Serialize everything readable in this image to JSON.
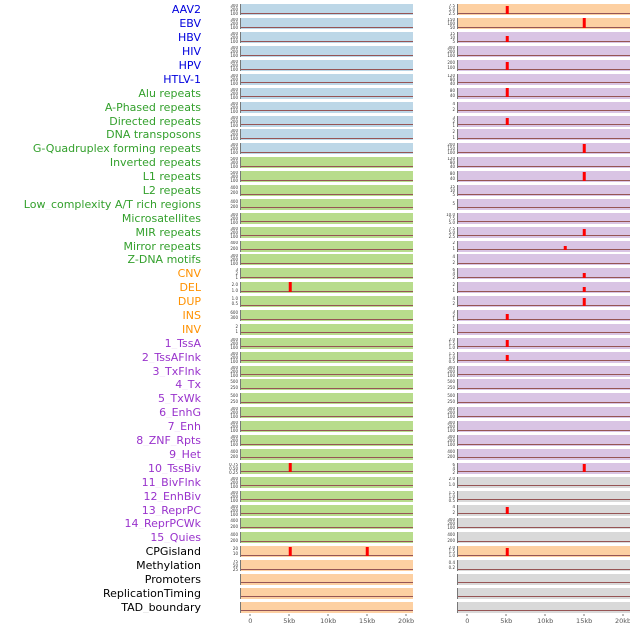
{
  "palette": {
    "label_colors": {
      "virus": "#0000dd",
      "repeat": "#33a02c",
      "sv": "#ff9100",
      "chromatin": "#9932cc",
      "other": "#000000"
    },
    "panel_colors": {
      "blue": "#bdd7e7",
      "green": "#b8dc8c",
      "tan": "#fdd0a2",
      "purple": "#d9c4e4",
      "gray": "#d9d9d9"
    },
    "spike_color": "#ff0000",
    "baseline_color": "#965555",
    "axis_text_color": "#555555"
  },
  "chart_data": {
    "type": "line",
    "subtype": "small-multiple-genomic-tracks",
    "title": "",
    "xlabel": "",
    "ylabel": "",
    "n_columns": 2,
    "x_range_kb": [
      0,
      20
    ],
    "x_ticks": [
      "0",
      "5kb",
      "10kb",
      "15kb",
      "20kb"
    ],
    "x_tick_kb": [
      0,
      5,
      10,
      15,
      20
    ],
    "description": "Two columns of flat density traces with red peak spikes; spike positions given in kb, heights as fraction of panel",
    "rows": [
      {
        "label": "AAV2",
        "group": "virus",
        "c1": {
          "bg": "blue",
          "yticks": [
            "300",
            "200",
            "100"
          ],
          "spikes": []
        },
        "c2": {
          "bg": "tan",
          "yticks": [
            "7.5",
            "5.0",
            "2.5"
          ],
          "spikes": [
            {
              "kb": 5,
              "h": 0.75
            }
          ]
        }
      },
      {
        "label": "EBV",
        "group": "virus",
        "c1": {
          "bg": "blue",
          "yticks": [
            "300",
            "200",
            "100"
          ],
          "spikes": []
        },
        "c2": {
          "bg": "tan",
          "yticks": [
            "150",
            "100",
            "50"
          ],
          "spikes": [
            {
              "kb": 15,
              "h": 0.9
            }
          ]
        }
      },
      {
        "label": "HBV",
        "group": "virus",
        "c1": {
          "bg": "blue",
          "yticks": [
            "300",
            "200",
            "100"
          ],
          "spikes": []
        },
        "c2": {
          "bg": "purple",
          "yticks": [
            "15",
            "10",
            "5"
          ],
          "spikes": [
            {
              "kb": 5,
              "h": 0.5
            }
          ]
        }
      },
      {
        "label": "HIV",
        "group": "virus",
        "c1": {
          "bg": "blue",
          "yticks": [
            "300",
            "200",
            "100"
          ],
          "spikes": []
        },
        "c2": {
          "bg": "purple",
          "yticks": [
            "300",
            "200",
            "100"
          ],
          "spikes": []
        }
      },
      {
        "label": "HPV",
        "group": "virus",
        "c1": {
          "bg": "blue",
          "yticks": [
            "300",
            "200",
            "100"
          ],
          "spikes": []
        },
        "c2": {
          "bg": "purple",
          "yticks": [
            "200",
            "100"
          ],
          "spikes": [
            {
              "kb": 5,
              "h": 0.7
            }
          ]
        }
      },
      {
        "label": "HTLV-1",
        "group": "virus",
        "c1": {
          "bg": "blue",
          "yticks": [
            "300",
            "200",
            "100"
          ],
          "spikes": []
        },
        "c2": {
          "bg": "purple",
          "yticks": [
            "120",
            "80",
            "40"
          ],
          "spikes": []
        }
      },
      {
        "label": "Alu repeats",
        "group": "repeat",
        "c1": {
          "bg": "blue",
          "yticks": [
            "300",
            "200",
            "100"
          ],
          "spikes": []
        },
        "c2": {
          "bg": "purple",
          "yticks": [
            "80",
            "40"
          ],
          "spikes": [
            {
              "kb": 5,
              "h": 0.8
            }
          ]
        }
      },
      {
        "label": "A-Phased repeats",
        "group": "repeat",
        "c1": {
          "bg": "blue",
          "yticks": [
            "300",
            "200",
            "100"
          ],
          "spikes": []
        },
        "c2": {
          "bg": "purple",
          "yticks": [
            "4",
            "2"
          ],
          "spikes": []
        }
      },
      {
        "label": "Directed repeats",
        "group": "repeat",
        "c1": {
          "bg": "blue",
          "yticks": [
            "300",
            "200",
            "100"
          ],
          "spikes": []
        },
        "c2": {
          "bg": "purple",
          "yticks": [
            "3",
            "2",
            "1"
          ],
          "spikes": [
            {
              "kb": 5,
              "h": 0.6
            }
          ]
        }
      },
      {
        "label": "DNA transposons",
        "group": "repeat",
        "c1": {
          "bg": "blue",
          "yticks": [
            "300",
            "200",
            "100"
          ],
          "spikes": []
        },
        "c2": {
          "bg": "purple",
          "yticks": [
            "2",
            "1"
          ],
          "spikes": []
        }
      },
      {
        "label": "G-Quadruplex forming repeats",
        "group": "repeat",
        "c1": {
          "bg": "blue",
          "yticks": [
            "300",
            "200",
            "100"
          ],
          "spikes": []
        },
        "c2": {
          "bg": "purple",
          "yticks": [
            "200",
            "150",
            "100",
            "50"
          ],
          "spikes": [
            {
              "kb": 15,
              "h": 0.85
            }
          ]
        }
      },
      {
        "label": "Inverted repeats",
        "group": "repeat",
        "c1": {
          "bg": "green",
          "yticks": [
            "500",
            "300",
            "100"
          ],
          "spikes": []
        },
        "c2": {
          "bg": "purple",
          "yticks": [
            "120",
            "80",
            "40"
          ],
          "spikes": []
        }
      },
      {
        "label": "L1 repeats",
        "group": "repeat",
        "c1": {
          "bg": "green",
          "yticks": [
            "500",
            "300",
            "100"
          ],
          "spikes": []
        },
        "c2": {
          "bg": "purple",
          "yticks": [
            "80",
            "40"
          ],
          "spikes": [
            {
              "kb": 15,
              "h": 0.8
            }
          ]
        }
      },
      {
        "label": "L2 repeats",
        "group": "repeat",
        "c1": {
          "bg": "green",
          "yticks": [
            "400",
            "200"
          ],
          "spikes": []
        },
        "c2": {
          "bg": "purple",
          "yticks": [
            "15",
            "10",
            "5"
          ],
          "spikes": []
        }
      },
      {
        "label": "Low_complexity A/T rich regions",
        "group": "repeat",
        "c1": {
          "bg": "green",
          "yticks": [
            "400",
            "200"
          ],
          "spikes": []
        },
        "c2": {
          "bg": "purple",
          "yticks": [
            "5"
          ],
          "spikes": []
        }
      },
      {
        "label": "Microsatellites",
        "group": "repeat",
        "c1": {
          "bg": "green",
          "yticks": [
            "300",
            "200",
            "100"
          ],
          "spikes": []
        },
        "c2": {
          "bg": "purple",
          "yticks": [
            "10.0",
            "7.5",
            "5.0",
            "2.5"
          ],
          "spikes": []
        }
      },
      {
        "label": "MIR repeats",
        "group": "repeat",
        "c1": {
          "bg": "green",
          "yticks": [
            "300",
            "200",
            "100"
          ],
          "spikes": []
        },
        "c2": {
          "bg": "purple",
          "yticks": [
            "7.5",
            "5.0",
            "2.5"
          ],
          "spikes": [
            {
              "kb": 15,
              "h": 0.7
            }
          ]
        }
      },
      {
        "label": "Mirror repeats",
        "group": "repeat",
        "c1": {
          "bg": "green",
          "yticks": [
            "400",
            "200"
          ],
          "spikes": []
        },
        "c2": {
          "bg": "purple",
          "yticks": [
            "2",
            "1"
          ],
          "spikes": [
            {
              "kb": 12.5,
              "h": 0.35
            }
          ]
        }
      },
      {
        "label": "Z-DNA motifs",
        "group": "repeat",
        "c1": {
          "bg": "green",
          "yticks": [
            "300",
            "200",
            "100"
          ],
          "spikes": []
        },
        "c2": {
          "bg": "purple",
          "yticks": [
            "4",
            "2"
          ],
          "spikes": []
        }
      },
      {
        "label": "CNV",
        "group": "sv",
        "c1": {
          "bg": "green",
          "yticks": [
            "3",
            "2",
            "1"
          ],
          "spikes": []
        },
        "c2": {
          "bg": "purple",
          "yticks": [
            "6",
            "4",
            "2"
          ],
          "spikes": [
            {
              "kb": 15,
              "h": 0.4
            }
          ]
        }
      },
      {
        "label": "DEL",
        "group": "sv",
        "c1": {
          "bg": "green",
          "yticks": [
            "2.0",
            "1.0"
          ],
          "spikes": [
            {
              "kb": 5,
              "h": 0.95
            }
          ]
        },
        "c2": {
          "bg": "purple",
          "yticks": [
            "2",
            "1"
          ],
          "spikes": [
            {
              "kb": 15,
              "h": 0.45
            }
          ]
        }
      },
      {
        "label": "DUP",
        "group": "sv",
        "c1": {
          "bg": "green",
          "yticks": [
            "1.0",
            "0.5"
          ],
          "spikes": []
        },
        "c2": {
          "bg": "purple",
          "yticks": [
            "4",
            "2"
          ],
          "spikes": [
            {
              "kb": 15,
              "h": 0.7
            }
          ]
        }
      },
      {
        "label": "INS",
        "group": "sv",
        "c1": {
          "bg": "green",
          "yticks": [
            "600",
            "300"
          ],
          "spikes": []
        },
        "c2": {
          "bg": "purple",
          "yticks": [
            "3",
            "2",
            "1"
          ],
          "spikes": [
            {
              "kb": 5,
              "h": 0.5
            }
          ]
        }
      },
      {
        "label": "INV",
        "group": "sv",
        "c1": {
          "bg": "green",
          "yticks": [
            "2",
            "1"
          ],
          "spikes": []
        },
        "c2": {
          "bg": "purple",
          "yticks": [
            "2",
            "1"
          ],
          "spikes": []
        }
      },
      {
        "label": "1_TssA",
        "group": "chromatin",
        "c1": {
          "bg": "green",
          "yticks": [
            "300",
            "200",
            "100"
          ],
          "spikes": []
        },
        "c2": {
          "bg": "purple",
          "yticks": [
            "2.0",
            "1.5",
            "1.0",
            "0.5"
          ],
          "spikes": [
            {
              "kb": 5,
              "h": 0.65
            }
          ]
        }
      },
      {
        "label": "2_TssAFlnk",
        "group": "chromatin",
        "c1": {
          "bg": "green",
          "yticks": [
            "300",
            "200",
            "100"
          ],
          "spikes": []
        },
        "c2": {
          "bg": "purple",
          "yticks": [
            "1.5",
            "1.0",
            "0.5"
          ],
          "spikes": [
            {
              "kb": 5,
              "h": 0.55
            }
          ]
        }
      },
      {
        "label": "3_TxFlnk",
        "group": "chromatin",
        "c1": {
          "bg": "green",
          "yticks": [
            "300",
            "200",
            "100"
          ],
          "spikes": []
        },
        "c2": {
          "bg": "purple",
          "yticks": [
            "300",
            "200",
            "100"
          ],
          "spikes": []
        }
      },
      {
        "label": "4_Tx",
        "group": "chromatin",
        "c1": {
          "bg": "green",
          "yticks": [
            "500",
            "250"
          ],
          "spikes": []
        },
        "c2": {
          "bg": "purple",
          "yticks": [
            "500",
            "250"
          ],
          "spikes": []
        }
      },
      {
        "label": "5_TxWk",
        "group": "chromatin",
        "c1": {
          "bg": "green",
          "yticks": [
            "500",
            "250"
          ],
          "spikes": []
        },
        "c2": {
          "bg": "purple",
          "yticks": [
            "500",
            "250"
          ],
          "spikes": []
        }
      },
      {
        "label": "6_EnhG",
        "group": "chromatin",
        "c1": {
          "bg": "green",
          "yticks": [
            "300",
            "200",
            "100"
          ],
          "spikes": []
        },
        "c2": {
          "bg": "purple",
          "yticks": [
            "300",
            "200",
            "100"
          ],
          "spikes": []
        }
      },
      {
        "label": "7_Enh",
        "group": "chromatin",
        "c1": {
          "bg": "green",
          "yticks": [
            "300",
            "200",
            "100"
          ],
          "spikes": []
        },
        "c2": {
          "bg": "purple",
          "yticks": [
            "300",
            "200",
            "100"
          ],
          "spikes": []
        }
      },
      {
        "label": "8_ZNF_Rpts",
        "group": "chromatin",
        "c1": {
          "bg": "green",
          "yticks": [
            "300",
            "200",
            "100"
          ],
          "spikes": []
        },
        "c2": {
          "bg": "purple",
          "yticks": [
            "300",
            "200",
            "100"
          ],
          "spikes": []
        }
      },
      {
        "label": "9_Het",
        "group": "chromatin",
        "c1": {
          "bg": "green",
          "yticks": [
            "400",
            "200"
          ],
          "spikes": []
        },
        "c2": {
          "bg": "purple",
          "yticks": [
            "400",
            "200"
          ],
          "spikes": []
        }
      },
      {
        "label": "10_TssBiv",
        "group": "chromatin",
        "c1": {
          "bg": "green",
          "yticks": [
            "0.75",
            "0.50",
            "0.25"
          ],
          "spikes": [
            {
              "kb": 5,
              "h": 0.85
            }
          ]
        },
        "c2": {
          "bg": "purple",
          "yticks": [
            "6",
            "4",
            "2"
          ],
          "spikes": [
            {
              "kb": 15,
              "h": 0.8
            }
          ]
        }
      },
      {
        "label": "11_BivFlnk",
        "group": "chromatin",
        "c1": {
          "bg": "green",
          "yticks": [
            "300",
            "200",
            "100"
          ],
          "spikes": []
        },
        "c2": {
          "bg": "gray",
          "yticks": [
            "2.0",
            "1.0"
          ],
          "spikes": []
        }
      },
      {
        "label": "12_EnhBiv",
        "group": "chromatin",
        "c1": {
          "bg": "green",
          "yticks": [
            "300",
            "200",
            "100"
          ],
          "spikes": []
        },
        "c2": {
          "bg": "gray",
          "yticks": [
            "1.5",
            "1.0",
            "0.5"
          ],
          "spikes": []
        }
      },
      {
        "label": "13_ReprPC",
        "group": "chromatin",
        "c1": {
          "bg": "green",
          "yticks": [
            "300",
            "200",
            "100"
          ],
          "spikes": []
        },
        "c2": {
          "bg": "gray",
          "yticks": [
            "4",
            "2"
          ],
          "spikes": [
            {
              "kb": 5,
              "h": 0.6
            }
          ]
        }
      },
      {
        "label": "14_ReprPCWk",
        "group": "chromatin",
        "c1": {
          "bg": "green",
          "yticks": [
            "400",
            "200"
          ],
          "spikes": []
        },
        "c2": {
          "bg": "gray",
          "yticks": [
            "300",
            "200",
            "100"
          ],
          "spikes": []
        }
      },
      {
        "label": "15_Quies",
        "group": "chromatin",
        "c1": {
          "bg": "green",
          "yticks": [
            "400",
            "200"
          ],
          "spikes": []
        },
        "c2": {
          "bg": "gray",
          "yticks": [
            "400",
            "200"
          ],
          "spikes": []
        }
      },
      {
        "label": "CPGisland",
        "group": "other",
        "c1": {
          "bg": "tan",
          "yticks": [
            "20",
            "10"
          ],
          "spikes": [
            {
              "kb": 5,
              "h": 0.8
            },
            {
              "kb": 15,
              "h": 0.8
            }
          ]
        },
        "c2": {
          "bg": "tan",
          "yticks": [
            "2.0",
            "1.5",
            "1.0",
            "0.5"
          ],
          "spikes": [
            {
              "kb": 5,
              "h": 0.7
            }
          ]
        }
      },
      {
        "label": "Methylation",
        "group": "other",
        "c1": {
          "bg": "tan",
          "yticks": [
            "75",
            "50",
            "25"
          ],
          "spikes": []
        },
        "c2": {
          "bg": "gray",
          "yticks": [
            "0.4",
            "0.2"
          ],
          "spikes": []
        }
      },
      {
        "label": "Promoters",
        "group": "other",
        "c1": {
          "bg": "tan",
          "yticks": [],
          "spikes": []
        },
        "c2": {
          "bg": "gray",
          "yticks": [],
          "spikes": []
        }
      },
      {
        "label": "ReplicationTiming",
        "group": "other",
        "c1": {
          "bg": "tan",
          "yticks": [],
          "spikes": []
        },
        "c2": {
          "bg": "gray",
          "yticks": [],
          "spikes": []
        }
      },
      {
        "label": "TAD_boundary",
        "group": "other",
        "c1": {
          "bg": "tan",
          "yticks": [],
          "spikes": []
        },
        "c2": {
          "bg": "gray",
          "yticks": [],
          "spikes": []
        }
      }
    ]
  }
}
